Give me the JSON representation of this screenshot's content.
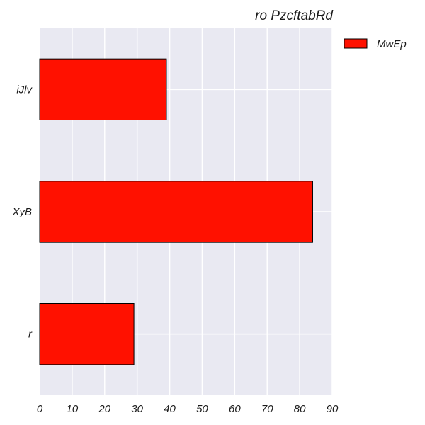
{
  "chart_data": {
    "type": "bar",
    "orientation": "horizontal",
    "title": "ro PzcftabRd",
    "xlabel": "",
    "ylabel": "",
    "categories": [
      "iJlv",
      "XyB",
      "r"
    ],
    "series": [
      {
        "name": "MwEp",
        "values": [
          39,
          84,
          29
        ],
        "color": "#ff1100"
      }
    ],
    "xlim": [
      0,
      90
    ],
    "xticks": [
      "0",
      "10",
      "20",
      "30",
      "40",
      "50",
      "60",
      "70",
      "80",
      "90"
    ],
    "grid": true,
    "legend_position": "outside-top-right",
    "background_color": "#e9e9f2",
    "grid_color": "#ffffff",
    "bar_edge_color": "#000000"
  }
}
